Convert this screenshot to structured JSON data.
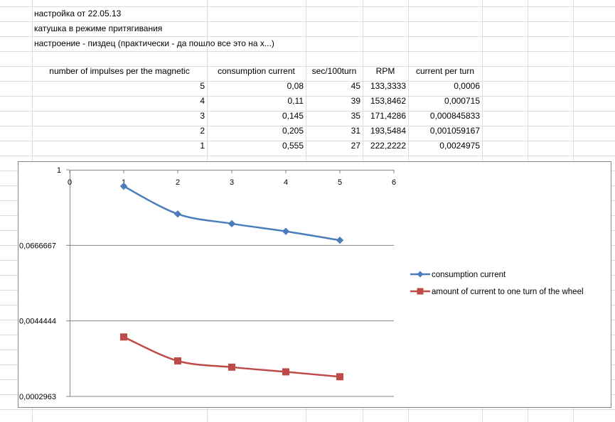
{
  "notes": [
    "настройка от 22.05.13",
    "катушка в режиме притягивания",
    "настроение - пиздец (практически - да пошло все это на х...)"
  ],
  "table": {
    "headers": [
      "number of impulses per the magnetic",
      "consumption current",
      "sec/100turn",
      "RPM",
      "current per turn"
    ],
    "rows": [
      [
        "5",
        "0,08",
        "45",
        "133,3333",
        "0,0006"
      ],
      [
        "4",
        "0,11",
        "39",
        "153,8462",
        "0,000715"
      ],
      [
        "3",
        "0,145",
        "35",
        "171,4286",
        "0,000845833"
      ],
      [
        "2",
        "0,205",
        "31",
        "193,5484",
        "0,001059167"
      ],
      [
        "1",
        "0,555",
        "27",
        "222,2222",
        "0,0024975"
      ]
    ]
  },
  "chart_data": {
    "type": "line",
    "xlim": [
      0,
      6
    ],
    "x_ticks": [
      "0",
      "1",
      "2",
      "3",
      "4",
      "5",
      "6"
    ],
    "y_scale": "log",
    "y_ticks": [
      "1",
      "0,0666667",
      "0,0044444",
      "0,0002963"
    ],
    "y_tick_values": [
      1,
      0.0666667,
      0.0044444,
      0.0002963
    ],
    "grid": "horizontal",
    "legend_position": "right",
    "series": [
      {
        "name": "consumption current",
        "color": "#4A7EBB",
        "marker": "diamond",
        "x": [
          1,
          2,
          3,
          4,
          5
        ],
        "y": [
          0.555,
          0.205,
          0.145,
          0.11,
          0.08
        ]
      },
      {
        "name": "amount of current to one turn of the wheel",
        "color": "#BE4B48",
        "marker": "square",
        "x": [
          1,
          2,
          3,
          4,
          5
        ],
        "y": [
          0.0024975,
          0.001059167,
          0.000845833,
          0.000715,
          0.0006
        ]
      }
    ]
  }
}
